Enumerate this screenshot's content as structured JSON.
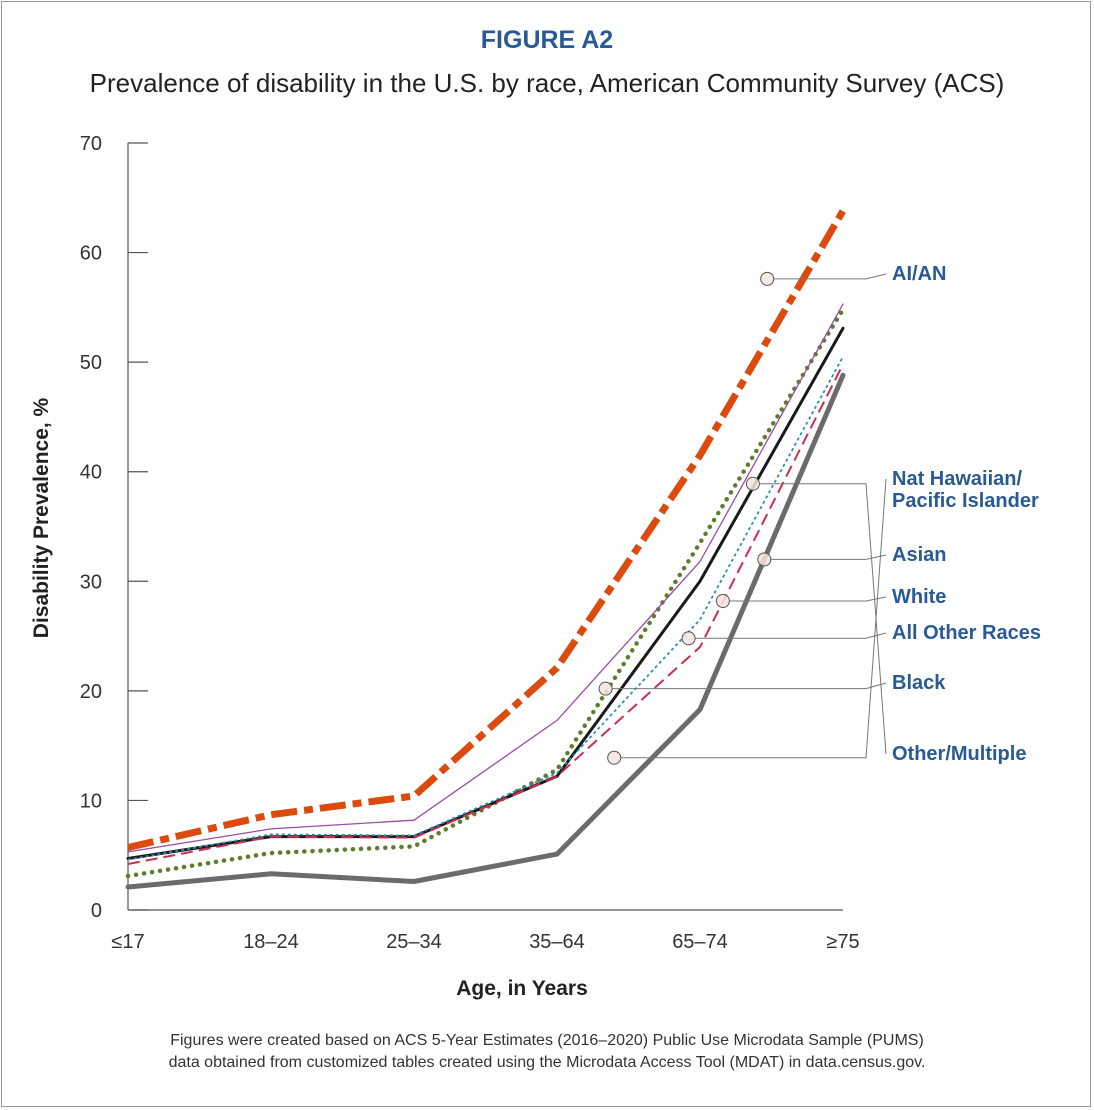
{
  "figure_label": "FIGURE A2",
  "figure_title": "Prevalence of disability in the U.S. by race, American Community Survey (ACS)",
  "footnote": {
    "line1": "Figures were created based on ACS 5-Year Estimates (2016–2020) Public Use Microdata Sample (PUMS)",
    "line2": "data obtained from customized tables created using the Microdata Access Tool (MDAT) in data.census.gov."
  },
  "colors": {
    "label_blue": "#2a5a93",
    "axis": "#555555",
    "leader": "#777777"
  },
  "chart_data": {
    "type": "line",
    "xlabel": "Age, in Years",
    "ylabel": "Disability Prevalence, %",
    "categories": [
      "≤17",
      "18–24",
      "25–34",
      "35–64",
      "65–74",
      "≥75"
    ],
    "yticks": [
      0,
      10,
      20,
      30,
      40,
      50,
      60,
      70
    ],
    "ylim": [
      0,
      70
    ],
    "grid": false,
    "legend": "right, direct labels with leader lines",
    "series": [
      {
        "name": "AI/AN",
        "values": [
          5.7,
          8.7,
          10.4,
          22.1,
          41.5,
          63.8
        ],
        "color": "#dc4a0d",
        "style": "dashdot-thick",
        "label_lines": [
          "AI/AN"
        ],
        "marker_value": 57.6
      },
      {
        "name": "Nat Hawaiian/ Pacific Islander",
        "values": [
          5.3,
          7.4,
          8.2,
          17.3,
          31.8,
          55.3
        ],
        "color": "#9b4ca6",
        "style": "thin",
        "label_lines": [
          "Nat Hawaiian/",
          "Pacific Islander"
        ],
        "marker_value": 13.9
      },
      {
        "name": "Asian",
        "values": [
          2.1,
          3.3,
          2.6,
          5.1,
          18.3,
          48.8
        ],
        "color": "#6b6b6b",
        "style": "thick",
        "label_lines": [
          "Asian"
        ],
        "marker_value": 32.0
      },
      {
        "name": "White",
        "values": [
          4.2,
          6.7,
          6.6,
          12.2,
          24.0,
          49.8
        ],
        "color": "#cc2e4f",
        "style": "dashed",
        "label_lines": [
          "White"
        ],
        "marker_value": 28.2
      },
      {
        "name": "All Other Races",
        "values": [
          4.6,
          6.9,
          6.8,
          12.5,
          26.5,
          50.5
        ],
        "color": "#2a8fb7",
        "style": "dotted-thin",
        "label_lines": [
          "All Other Races"
        ],
        "marker_value": 24.8
      },
      {
        "name": "Black",
        "values": [
          3.1,
          5.2,
          5.8,
          12.8,
          33.5,
          54.8
        ],
        "color": "#5e7d2c",
        "style": "dotted-thick",
        "label_lines": [
          "Black"
        ],
        "marker_value": 20.2
      },
      {
        "name": "Other/Multiple",
        "values": [
          4.7,
          6.7,
          6.7,
          12.2,
          30.0,
          53.1
        ],
        "color": "#1a1a1a",
        "style": "solid",
        "label_lines": [
          "Other/Multiple"
        ],
        "marker_value": 38.9
      }
    ]
  }
}
